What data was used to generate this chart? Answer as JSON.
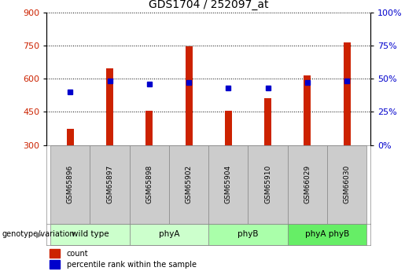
{
  "title": "GDS1704 / 252097_at",
  "samples": [
    "GSM65896",
    "GSM65897",
    "GSM65898",
    "GSM65902",
    "GSM65904",
    "GSM65910",
    "GSM66029",
    "GSM66030"
  ],
  "counts": [
    372,
    648,
    455,
    745,
    455,
    510,
    615,
    762
  ],
  "percentiles": [
    40,
    48,
    46,
    47,
    43,
    43,
    47,
    48
  ],
  "groups": [
    {
      "label": "wild type",
      "start": 0,
      "end": 1,
      "color": "#ccffcc"
    },
    {
      "label": "phyA",
      "start": 2,
      "end": 3,
      "color": "#ccffcc"
    },
    {
      "label": "phyB",
      "start": 4,
      "end": 5,
      "color": "#aaffaa"
    },
    {
      "label": "phyA phyB",
      "start": 6,
      "end": 7,
      "color": "#66ee66"
    }
  ],
  "ylim_left": [
    300,
    900
  ],
  "ylim_right": [
    0,
    100
  ],
  "yticks_left": [
    300,
    450,
    600,
    750,
    900
  ],
  "yticks_right": [
    0,
    25,
    50,
    75,
    100
  ],
  "bar_color": "#cc2200",
  "dot_color": "#0000cc",
  "bar_bottom": 300,
  "title_fontsize": 10,
  "left_color": "#cc2200",
  "right_color": "#0000cc",
  "genotype_label": "genotype/variation",
  "legend_count": "count",
  "legend_percentile": "percentile rank within the sample",
  "sample_box_color": "#cccccc",
  "bar_width": 0.18
}
